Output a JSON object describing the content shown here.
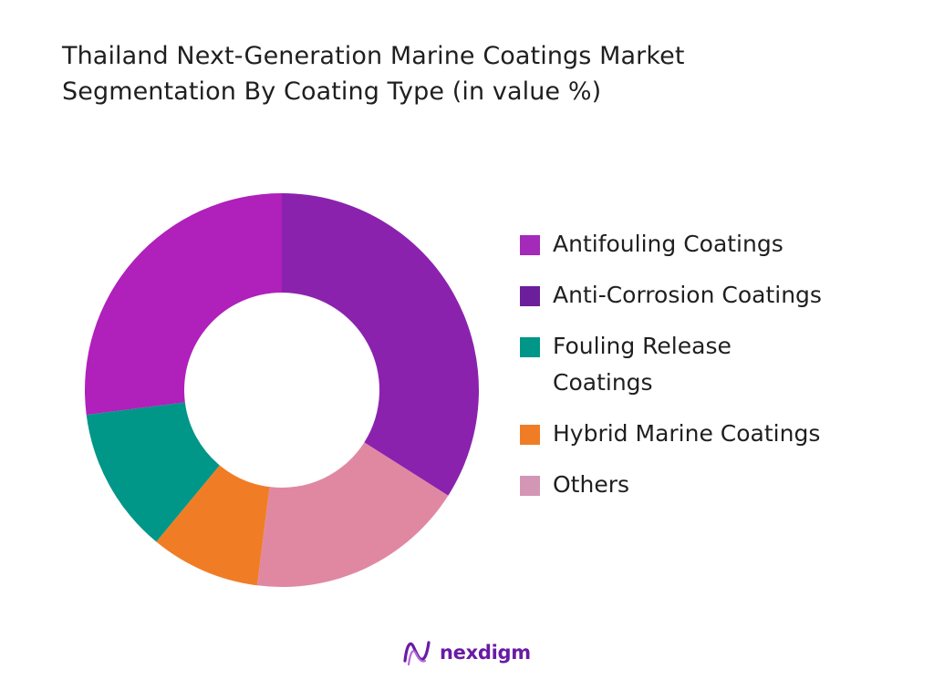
{
  "title_lines": [
    "Thailand Next-Generation Marine Coatings Market",
    "Segmentation By Coating Type (in value %)"
  ],
  "chart_data": {
    "type": "pie",
    "variant": "donut",
    "title": "Thailand Next-Generation Marine Coatings Market Segmentation By Coating Type (in value %)",
    "categories": [
      "Antifouling Coatings",
      "Anti-Corrosion Coatings",
      "Fouling Release Coatings",
      "Hybrid Marine Coatings",
      "Others"
    ],
    "values": [
      34,
      27,
      12,
      9,
      18
    ],
    "slice_colors": [
      "#8b22ae",
      "#e088a2",
      "#f07d26",
      "#009688",
      "#b020ba"
    ],
    "slice_order_clockwise_from_top": [
      0,
      4,
      3,
      2,
      1
    ],
    "legend": {
      "placement": "right",
      "items": [
        {
          "label": "Antifouling Coatings",
          "color": "#a42ab9"
        },
        {
          "label": "Anti-Corrosion Coatings",
          "color": "#6c1f9a"
        },
        {
          "label": "Fouling Release Coatings",
          "color": "#009688"
        },
        {
          "label": "Hybrid Marine Coatings",
          "color": "#f07d26"
        },
        {
          "label": "Others",
          "color": "#d496b5"
        }
      ]
    }
  },
  "logo": {
    "text": "nexdigm",
    "color": "#6a1ba5"
  }
}
